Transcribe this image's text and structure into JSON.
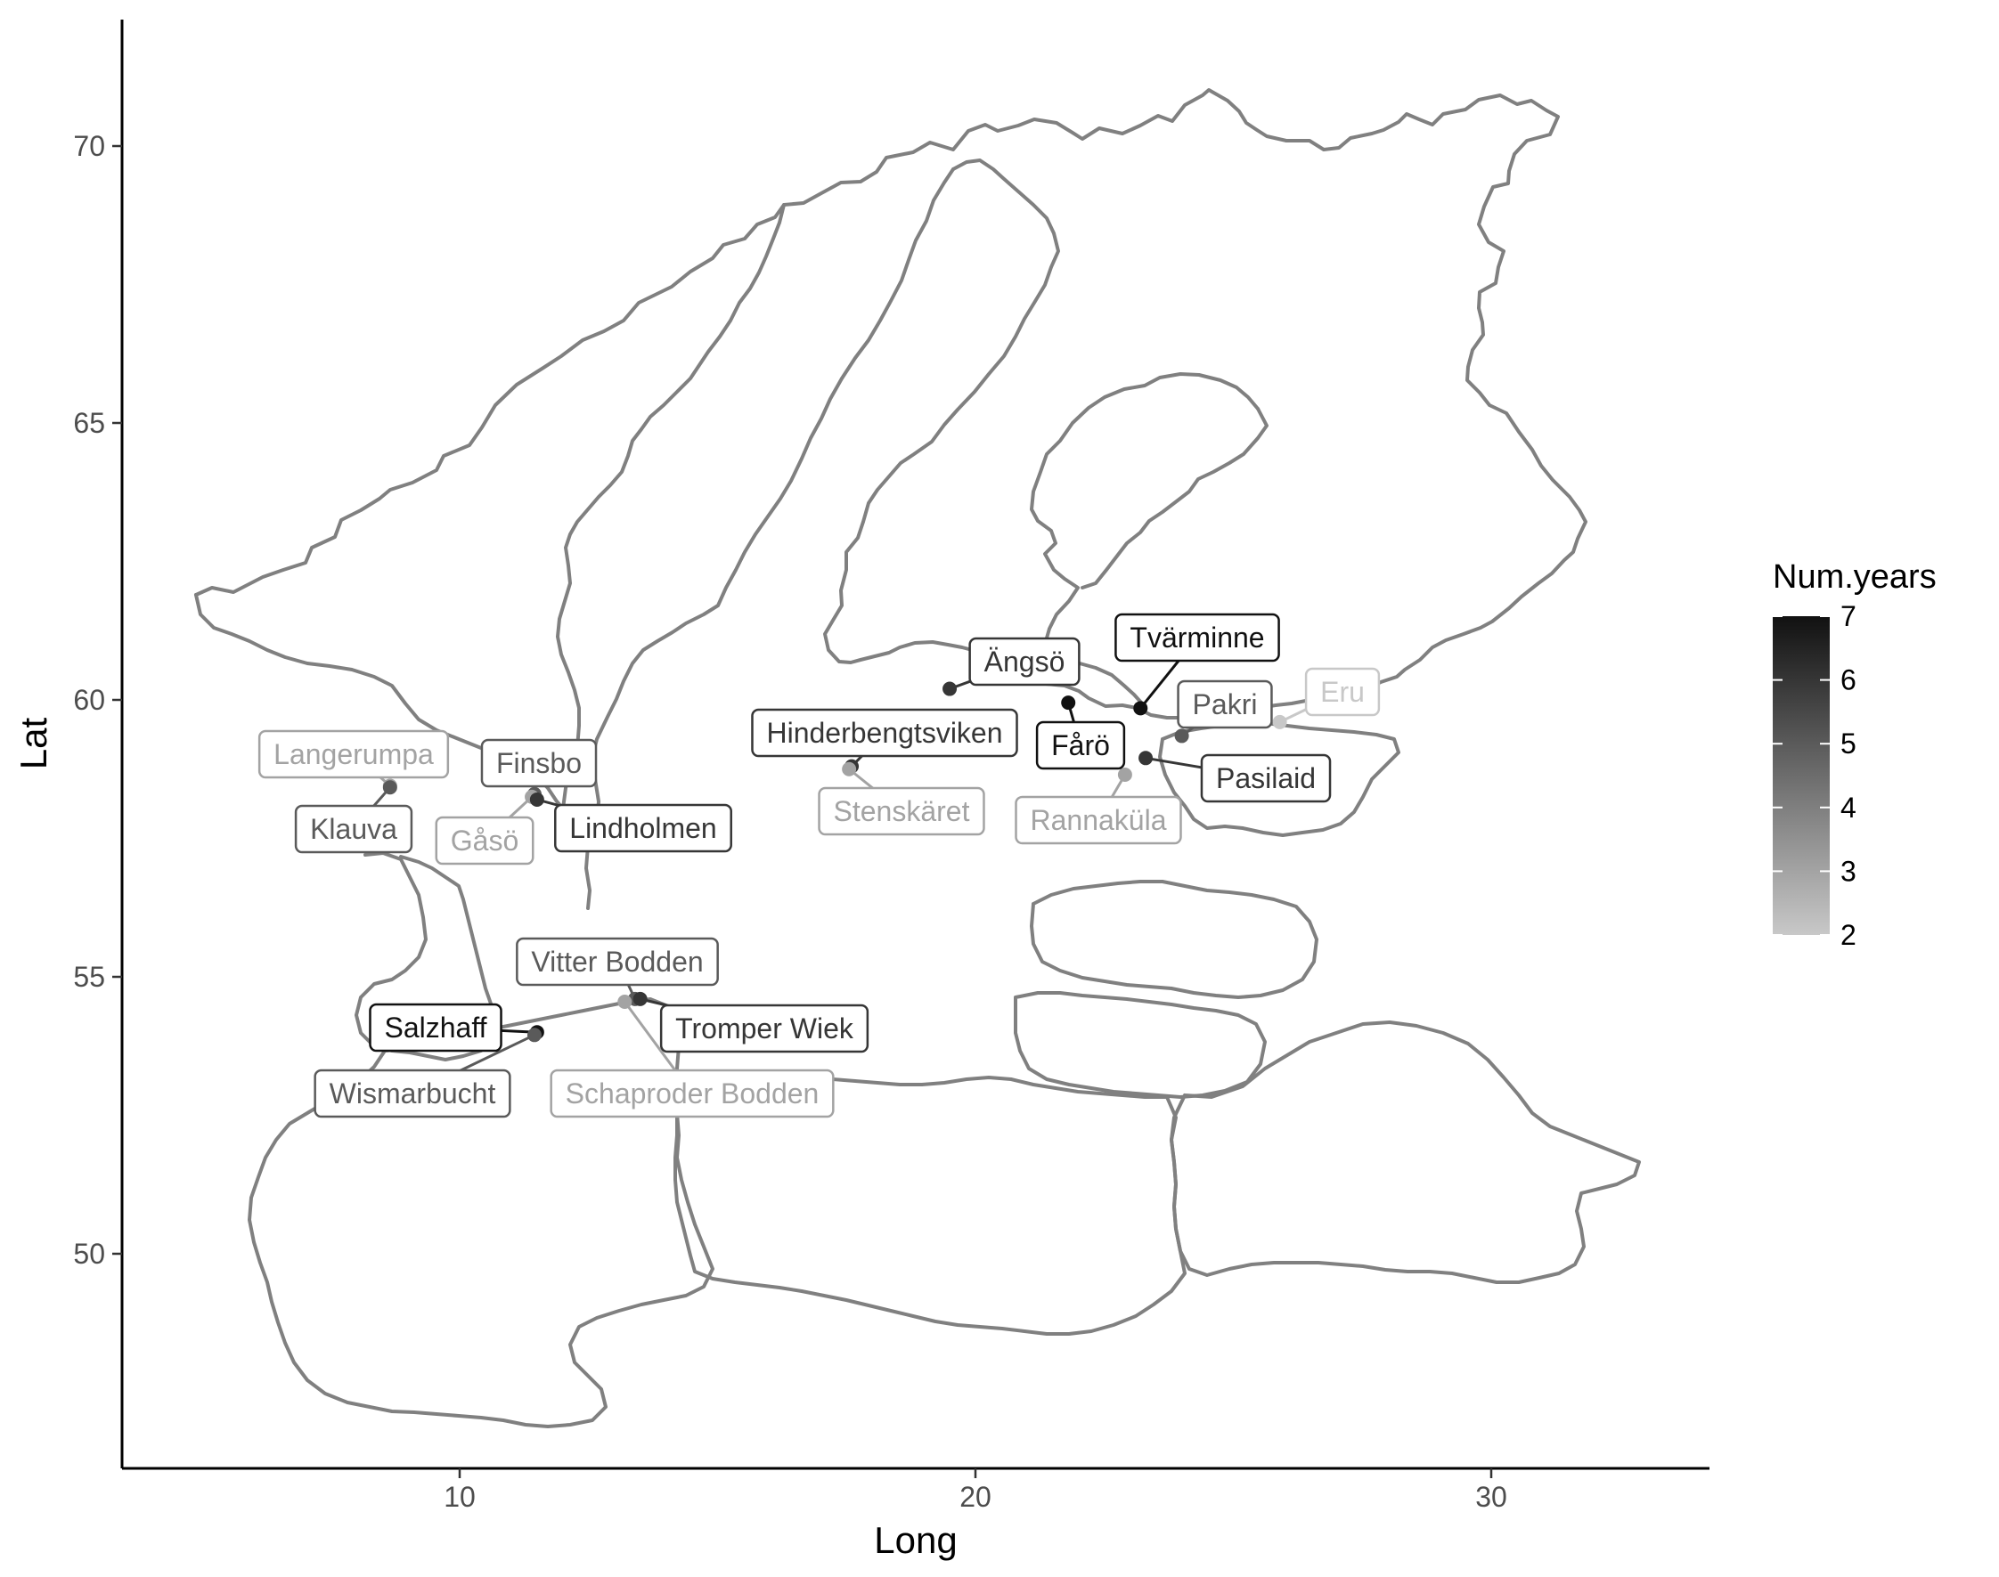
{
  "map": {
    "xlabel": "Long",
    "ylabel": "Lat",
    "x_ticks": [
      10,
      20,
      30
    ],
    "y_ticks": [
      50,
      55,
      60,
      65,
      70
    ],
    "xlim": [
      3.4,
      34.2
    ],
    "ylim": [
      45.8,
      72.3
    ]
  },
  "legend": {
    "title": "Num.years",
    "ticks": [
      7,
      6,
      5,
      4,
      3,
      2
    ],
    "colors": {
      "low": "#c8c8c8",
      "high": "#111111",
      "border": "#808080"
    }
  },
  "sites": [
    {
      "name": "Langerumpa",
      "lon": 8.65,
      "lat": 58.45,
      "years": 3
    },
    {
      "name": "Klauva",
      "lon": 8.65,
      "lat": 58.42,
      "years": 5
    },
    {
      "name": "Finsbo",
      "lon": 11.45,
      "lat": 58.3,
      "years": 5
    },
    {
      "name": "Gåsö",
      "lon": 11.4,
      "lat": 58.25,
      "years": 3
    },
    {
      "name": "Lindholmen",
      "lon": 11.5,
      "lat": 58.2,
      "years": 6
    },
    {
      "name": "Hinderbengtsviken",
      "lon": 17.6,
      "lat": 58.8,
      "years": 6
    },
    {
      "name": "Stenskäret",
      "lon": 17.55,
      "lat": 58.75,
      "years": 3
    },
    {
      "name": "Ängsö",
      "lon": 19.5,
      "lat": 60.2,
      "years": 6
    },
    {
      "name": "Fårö",
      "lon": 21.8,
      "lat": 59.95,
      "years": 7
    },
    {
      "name": "Tvärminne",
      "lon": 23.2,
      "lat": 59.85,
      "years": 7
    },
    {
      "name": "Pakri",
      "lon": 24.0,
      "lat": 59.35,
      "years": 5
    },
    {
      "name": "Eru",
      "lon": 25.9,
      "lat": 59.6,
      "years": 2
    },
    {
      "name": "Pasilaid",
      "lon": 23.3,
      "lat": 58.95,
      "years": 6
    },
    {
      "name": "Rannaküla",
      "lon": 22.9,
      "lat": 58.65,
      "years": 3
    },
    {
      "name": "Vitter Bodden",
      "lon": 13.4,
      "lat": 54.6,
      "years": 5
    },
    {
      "name": "Salzhaff",
      "lon": 11.5,
      "lat": 54.0,
      "years": 7
    },
    {
      "name": "Tromper Wiek",
      "lon": 13.5,
      "lat": 54.6,
      "years": 6
    },
    {
      "name": "Wismarbucht",
      "lon": 11.45,
      "lat": 53.95,
      "years": 5
    },
    {
      "name": "Schaproder Bodden",
      "lon": 13.2,
      "lat": 54.55,
      "years": 3
    }
  ]
}
